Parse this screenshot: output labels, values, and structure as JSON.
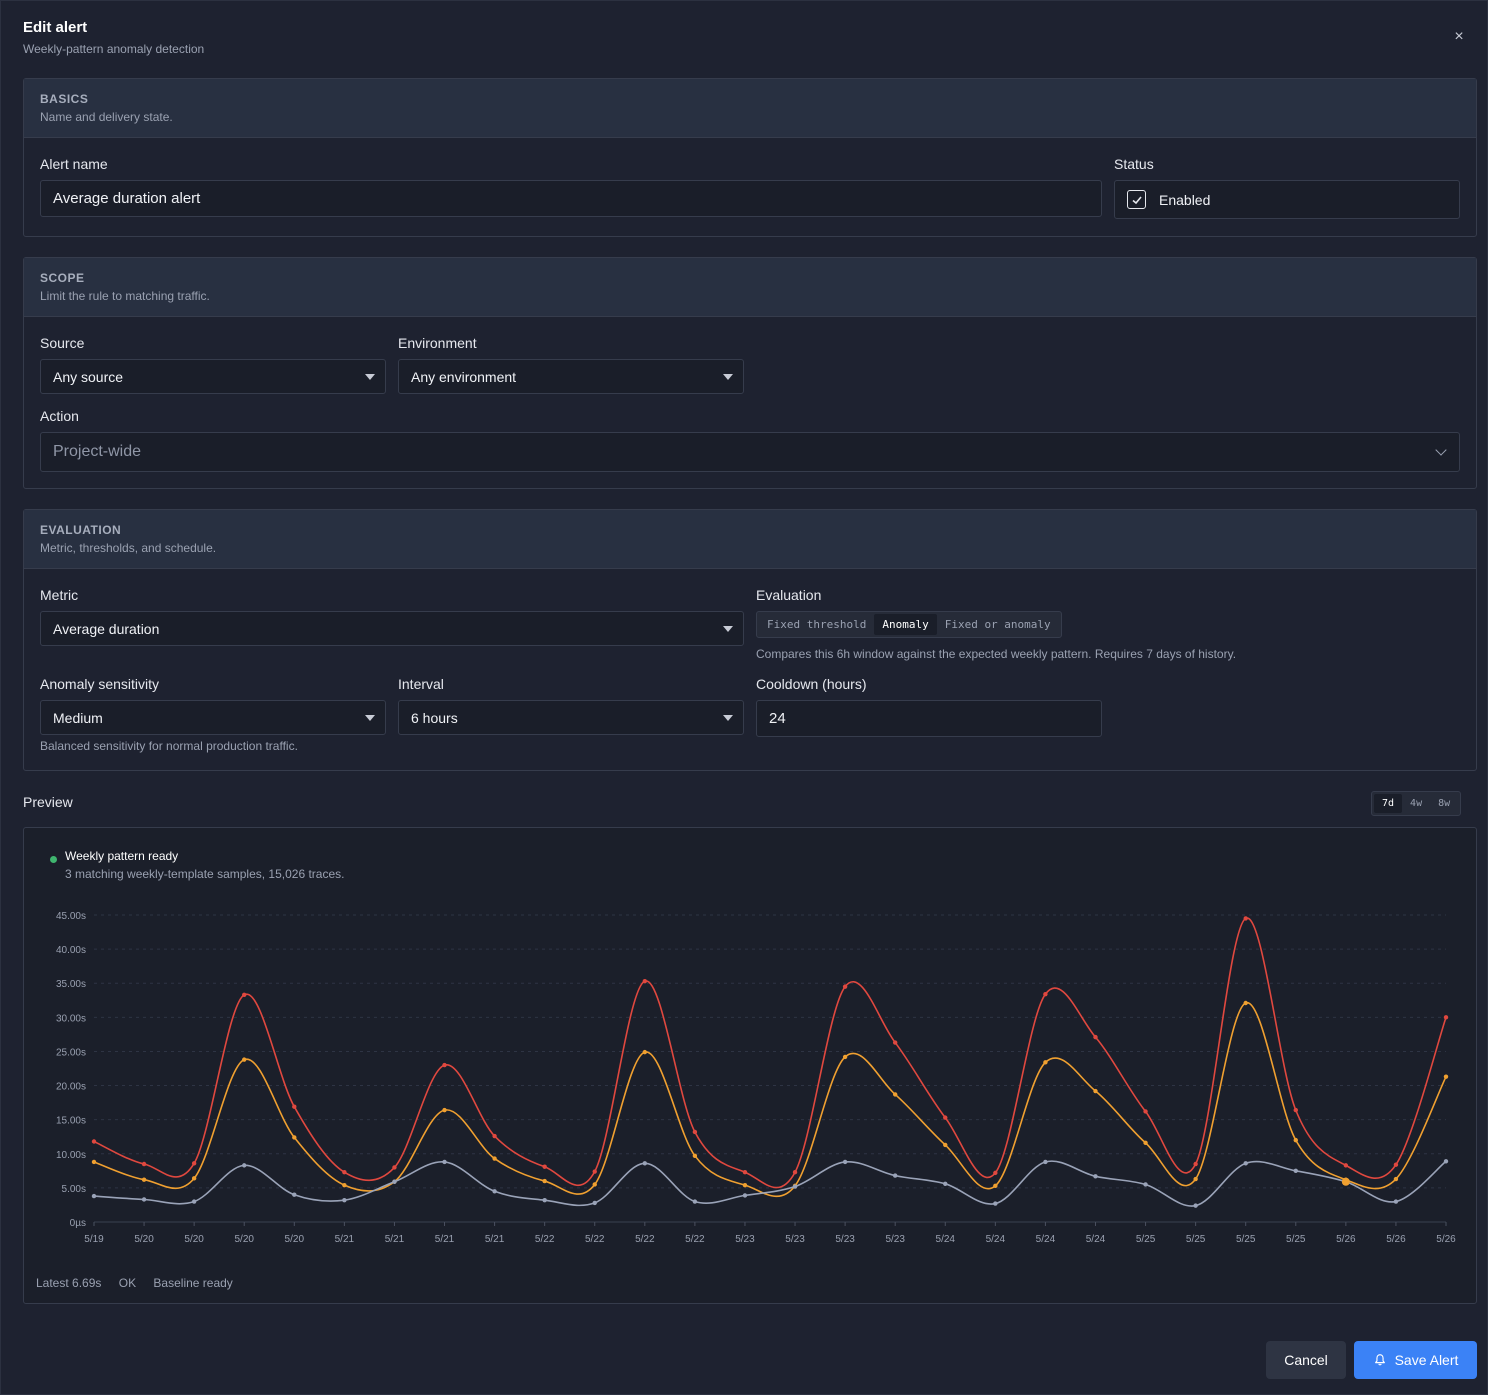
{
  "dialog": {
    "title": "Edit alert",
    "subtitle": "Weekly-pattern anomaly detection",
    "close_icon": "×"
  },
  "basics": {
    "title": "BASICS",
    "description": "Name and delivery state.",
    "alert_name_label": "Alert name",
    "alert_name_value": "Average duration alert",
    "status_label": "Status",
    "status_value": "Enabled"
  },
  "scope": {
    "title": "SCOPE",
    "description": "Limit the rule to matching traffic.",
    "source_label": "Source",
    "source_value": "Any source",
    "environment_label": "Environment",
    "environment_value": "Any environment",
    "action_label": "Action",
    "action_placeholder": "Project-wide"
  },
  "evaluation": {
    "title": "EVALUATION",
    "description": "Metric, thresholds, and schedule.",
    "metric_label": "Metric",
    "metric_value": "Average duration",
    "evaluation_label": "Evaluation",
    "modes": [
      "Fixed threshold",
      "Anomaly",
      "Fixed or anomaly"
    ],
    "active_mode": "Anomaly",
    "evaluation_help": "Compares this 6h window against the expected weekly pattern. Requires 7 days of history.",
    "sensitivity_label": "Anomaly sensitivity",
    "sensitivity_value": "Medium",
    "sensitivity_help": "Balanced sensitivity for normal production traffic.",
    "interval_label": "Interval",
    "interval_value": "6 hours",
    "cooldown_label": "Cooldown (hours)",
    "cooldown_value": "24"
  },
  "preview": {
    "label": "Preview",
    "ranges": [
      "7d",
      "4w",
      "8w"
    ],
    "active_range": "7d",
    "status_title": "Weekly pattern ready",
    "status_desc": "3 matching weekly-template samples, 15,026 traces.",
    "stats": [
      "Latest 6.69s",
      "OK",
      "Baseline ready"
    ]
  },
  "chart_data": {
    "type": "line",
    "x": [
      "5/19",
      "5/20",
      "5/20",
      "5/20",
      "5/20",
      "5/21",
      "5/21",
      "5/21",
      "5/21",
      "5/22",
      "5/22",
      "5/22",
      "5/22",
      "5/23",
      "5/23",
      "5/23",
      "5/23",
      "5/24",
      "5/24",
      "5/24",
      "5/24",
      "5/25",
      "5/25",
      "5/25",
      "5/25",
      "5/26",
      "5/26",
      "5/26"
    ],
    "y_ticks": [
      "0µs",
      "5.00s",
      "10.00s",
      "15.00s",
      "20.00s",
      "25.00s",
      "30.00s",
      "35.00s",
      "40.00s",
      "45.00s"
    ],
    "ylim": [
      0,
      45
    ],
    "grid": true,
    "series": [
      {
        "color": "#e0483f",
        "values": [
          11.8,
          8.5,
          8.6,
          33.3,
          16.9,
          7.3,
          8.0,
          23.0,
          12.6,
          8.1,
          7.4,
          35.3,
          13.2,
          7.3,
          7.3,
          34.5,
          26.3,
          15.3,
          7.2,
          33.4,
          27.1,
          16.2,
          8.5,
          44.5,
          16.4,
          8.3,
          8.4,
          30.0
        ]
      },
      {
        "color": "#f0a030",
        "values": [
          8.8,
          6.2,
          6.4,
          23.8,
          12.4,
          5.4,
          5.9,
          16.4,
          9.3,
          6.0,
          5.5,
          24.9,
          9.7,
          5.4,
          5.3,
          24.2,
          18.7,
          11.3,
          5.3,
          23.4,
          19.2,
          11.6,
          6.3,
          32.1,
          12.0,
          6.2,
          6.3,
          21.3
        ]
      },
      {
        "color": "#9aa3b8",
        "values": [
          3.8,
          3.3,
          3.0,
          8.3,
          4.0,
          3.2,
          5.9,
          8.8,
          4.5,
          3.2,
          2.8,
          8.6,
          3.0,
          3.9,
          5.2,
          8.8,
          6.8,
          5.6,
          2.7,
          8.8,
          6.7,
          5.5,
          2.4,
          8.6,
          7.5,
          5.9,
          3.0,
          8.9
        ]
      }
    ],
    "highlight": {
      "index": 25,
      "value": 5.9,
      "color": "#f0a030"
    }
  },
  "footer": {
    "cancel_label": "Cancel",
    "save_label": "Save Alert",
    "save_icon": "bell-icon"
  }
}
